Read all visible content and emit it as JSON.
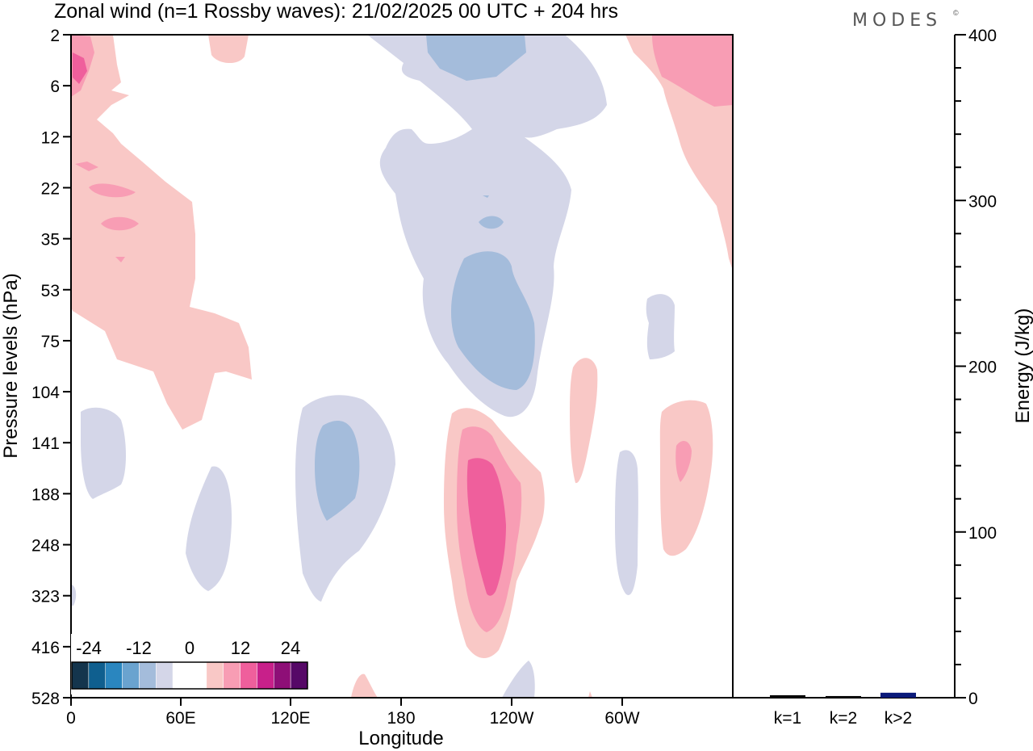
{
  "title": "Zonal wind (n=1 Rossby waves):  21/02/2025  00 UTC  + 204 hrs",
  "brand": "MODES",
  "brand_mark": "©",
  "chart_data": [
    {
      "type": "heatmap",
      "description_of_field": "filled contour, longitude vs pressure",
      "xlabel": "Longitude",
      "ylabel": "Pressure levels (hPa)",
      "x_ticks": [
        "0",
        "60E",
        "120E",
        "180",
        "120W",
        "60W"
      ],
      "y_ticks": [
        "2",
        "6",
        "12",
        "22",
        "35",
        "53",
        "75",
        "104",
        "141",
        "188",
        "248",
        "323",
        "416",
        "528"
      ],
      "colorbar": {
        "labels": [
          "-24",
          "-12",
          "0",
          "12",
          "24"
        ],
        "colors": [
          "#14354d",
          "#0f5f8f",
          "#2a86bf",
          "#6aa3cf",
          "#a4bcdb",
          "#d4d6e8",
          "#ffffff",
          "#ffffff",
          "#f9c8c6",
          "#f89db4",
          "#ef5f9c",
          "#c8208a",
          "#8e0f77",
          "#560867"
        ]
      },
      "contour_levels": [
        "-6",
        "-4",
        "2",
        "4",
        "6"
      ],
      "contour_colors": [
        "#d4d6e8",
        "#a4bcdb",
        "#f9c8c6",
        "#f89db4",
        "#ef5f9c"
      ]
    },
    {
      "type": "bar",
      "categories": [
        "k=1",
        "k=2",
        "k>2"
      ],
      "values": [
        1.5,
        1,
        3
      ],
      "colors": [
        "#000000",
        "#000000",
        "#0a1a7a"
      ],
      "ylabel": "Energy (J/kg)",
      "ylim": [
        0,
        400
      ],
      "y_ticks": [
        "0",
        "100",
        "200",
        "300",
        "400"
      ]
    }
  ]
}
